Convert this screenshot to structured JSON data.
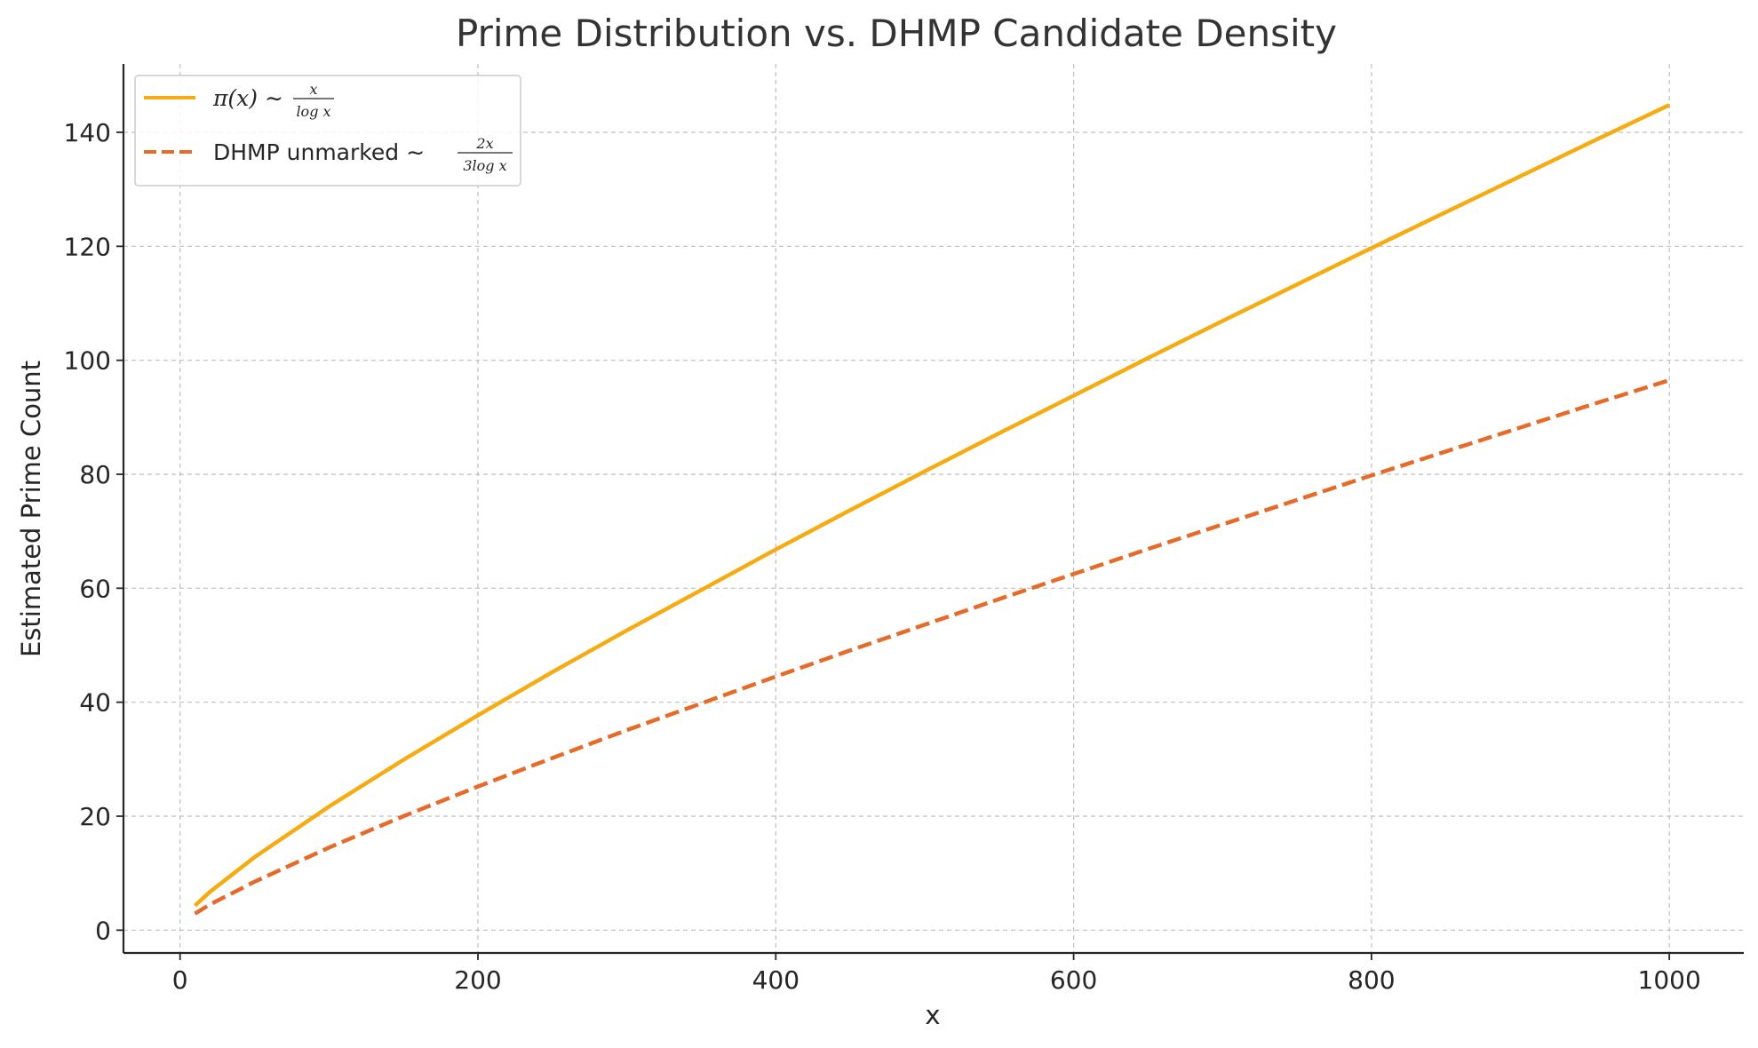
{
  "chart_data": {
    "type": "line",
    "title": "Prime Distribution vs. DHMP Candidate Density",
    "xlabel": "x",
    "ylabel": "Estimated Prime Count",
    "xlim": [
      -38,
      1050
    ],
    "ylim": [
      -4,
      152
    ],
    "xticks": [
      0,
      200,
      400,
      600,
      800,
      1000
    ],
    "yticks": [
      0,
      20,
      40,
      60,
      80,
      100,
      120,
      140
    ],
    "xtick_labels": [
      "0",
      "200",
      "400",
      "600",
      "800",
      "1000"
    ],
    "ytick_labels": [
      "0",
      "20",
      "40",
      "60",
      "80",
      "100",
      "120",
      "140"
    ],
    "grid": true,
    "legend_position": "top-left",
    "x": [
      10,
      20,
      50,
      100,
      150,
      200,
      250,
      300,
      350,
      400,
      450,
      500,
      550,
      600,
      650,
      700,
      750,
      800,
      850,
      900,
      950,
      1000
    ],
    "series": [
      {
        "name": "π(x) ∼ x / log x",
        "legend_parts": {
          "main": "π(x) ∼ ",
          "num": "x",
          "den": "log x"
        },
        "color": "#f5ab12",
        "style": "solid",
        "values": [
          4.3,
          6.7,
          12.8,
          21.7,
          29.9,
          37.7,
          45.3,
          52.6,
          59.7,
          66.8,
          73.7,
          80.5,
          87.2,
          93.8,
          100.4,
          106.9,
          113.3,
          119.7,
          126.0,
          132.3,
          138.6,
          144.8
        ]
      },
      {
        "name": "DHMP unmarked ∼ 2x / 3log x",
        "legend_parts": {
          "main": "DHMP unmarked  ∼",
          "num": "2x",
          "den": "3log x"
        },
        "color": "#e56b2b",
        "style": "dashed",
        "values": [
          2.9,
          4.5,
          8.5,
          14.5,
          20.0,
          25.2,
          30.2,
          35.1,
          39.8,
          44.5,
          49.1,
          53.6,
          58.1,
          62.5,
          66.9,
          71.2,
          75.5,
          79.8,
          84.0,
          88.2,
          92.4,
          96.5
        ]
      }
    ]
  }
}
